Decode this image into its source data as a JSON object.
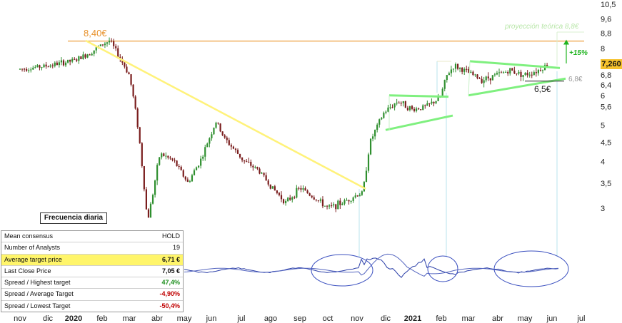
{
  "chart_data": {
    "type": "candlestick",
    "y_scale": "log",
    "ylim": [
      2.45,
      10.8
    ],
    "y_ticks": [
      "10,5",
      "9,6",
      "8,8",
      "8",
      "6,8",
      "6,4",
      "6",
      "5,6",
      "5",
      "4,5",
      "4",
      "3,5",
      "3"
    ],
    "y_tick_values": [
      10.5,
      9.6,
      8.8,
      8.0,
      6.8,
      6.4,
      6.0,
      5.6,
      5.0,
      4.5,
      4.0,
      3.5,
      3.0
    ],
    "x_ticks": [
      "nov",
      "dic",
      "2020",
      "feb",
      "mar",
      "abr",
      "may",
      "jun",
      "jul",
      "ago",
      "sep",
      "oct",
      "nov",
      "dic",
      "2021",
      "feb",
      "mar",
      "abr",
      "may",
      "jun",
      "jul"
    ],
    "x_ticks_bold": [
      "2020",
      "2021"
    ],
    "price_path": [
      [
        0,
        7.05
      ],
      [
        1,
        7.2
      ],
      [
        2,
        7.45
      ],
      [
        2.5,
        7.8
      ],
      [
        3,
        8.25
      ],
      [
        3.2,
        8.4
      ],
      [
        3.5,
        7.7
      ],
      [
        3.9,
        6.8
      ],
      [
        4.2,
        5.0
      ],
      [
        4.4,
        3.6
      ],
      [
        4.55,
        2.75
      ],
      [
        4.75,
        3.3
      ],
      [
        5,
        4.2
      ],
      [
        5.5,
        4.0
      ],
      [
        6,
        3.5
      ],
      [
        6.5,
        4.1
      ],
      [
        7,
        5.1
      ],
      [
        7.3,
        4.6
      ],
      [
        8,
        4.0
      ],
      [
        8.5,
        3.8
      ],
      [
        9,
        3.4
      ],
      [
        9.5,
        3.1
      ],
      [
        10,
        3.4
      ],
      [
        10.5,
        3.2
      ],
      [
        11,
        3.0
      ],
      [
        11.5,
        3.1
      ],
      [
        12,
        3.25
      ],
      [
        12.25,
        3.3
      ],
      [
        12.5,
        4.5
      ],
      [
        13,
        5.4
      ],
      [
        13.5,
        5.8
      ],
      [
        14,
        5.5
      ],
      [
        14.5,
        5.6
      ],
      [
        15,
        5.9
      ],
      [
        15.25,
        6.8
      ],
      [
        15.5,
        7.2
      ],
      [
        16,
        6.9
      ],
      [
        16.5,
        6.6
      ],
      [
        17,
        6.8
      ],
      [
        17.5,
        7.0
      ],
      [
        18,
        6.8
      ],
      [
        18.5,
        7.0
      ],
      [
        18.85,
        7.26
      ]
    ],
    "price_label": "7,260",
    "annotations": {
      "peak_label": "8,40€",
      "projection_label": "proyección teórica 8,8€",
      "gain_label": "+15%",
      "support_label": "6,5€",
      "support2_label": "6,8€"
    },
    "frequency_label": "Frecuencia diaria"
  },
  "consensus_table": [
    {
      "label": "Mean consensus",
      "value": "HOLD",
      "style": "plain"
    },
    {
      "label": "Number of Analysts",
      "value": "19",
      "style": "plain"
    },
    {
      "label": "Average target price",
      "value": "6,71 €",
      "style": "bold",
      "highlight": true
    },
    {
      "label": "Last Close Price",
      "value": "7,05 €",
      "style": "bold"
    },
    {
      "label": "Spread / Highest target",
      "value": "47,4%",
      "style": "green"
    },
    {
      "label": "Spread / Average Target",
      "value": "-4,90%",
      "style": "red"
    },
    {
      "label": "Spread / Lowest Target",
      "value": "-50,4%",
      "style": "red"
    }
  ],
  "colors": {
    "candle_up": "#2f8f2f",
    "candle_down": "#7a1d1d",
    "trend_yellow": "#fff27a",
    "resistance_orange": "#f0b060",
    "triangle_green": "#7ff07f",
    "indicator_blue": "#2b3fa8",
    "price_badge": "#f6c22c"
  }
}
